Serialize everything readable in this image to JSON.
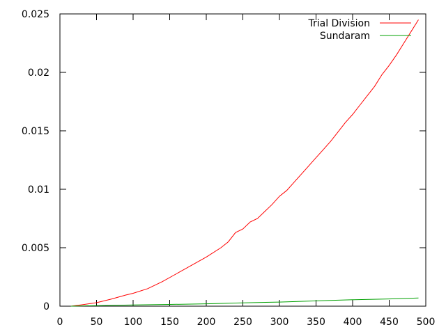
{
  "chart_data": {
    "type": "line",
    "title": "",
    "xlabel": "",
    "ylabel": "",
    "xlim": [
      0,
      500
    ],
    "ylim": [
      0,
      0.025
    ],
    "x_ticks": [
      0,
      50,
      100,
      150,
      200,
      250,
      300,
      350,
      400,
      450,
      500
    ],
    "x_tick_labels": [
      "0",
      "50",
      "100",
      "150",
      "200",
      "250",
      "300",
      "350",
      "400",
      "450",
      "500"
    ],
    "y_ticks": [
      0,
      0.005,
      0.01,
      0.015,
      0.02,
      0.025
    ],
    "y_tick_labels": [
      "0",
      "0.005",
      "0.01",
      "0.015",
      "0.02",
      "0.025"
    ],
    "grid": false,
    "legend_position": "top-right",
    "series": [
      {
        "name": "Trial Division",
        "color": "#ff0000",
        "x": [
          15,
          30,
          50,
          70,
          90,
          100,
          120,
          140,
          160,
          180,
          200,
          220,
          230,
          240,
          250,
          260,
          270,
          280,
          290,
          300,
          310,
          320,
          330,
          340,
          350,
          360,
          370,
          380,
          390,
          400,
          410,
          420,
          430,
          440,
          450,
          460,
          470,
          480,
          490
        ],
        "y": [
          0.0,
          0.00012,
          0.0003,
          0.0006,
          0.00095,
          0.0011,
          0.0015,
          0.0021,
          0.0028,
          0.0035,
          0.0042,
          0.005,
          0.0055,
          0.0063,
          0.0066,
          0.0072,
          0.0075,
          0.0081,
          0.0087,
          0.0094,
          0.0099,
          0.0106,
          0.0113,
          0.012,
          0.0127,
          0.0134,
          0.0141,
          0.0149,
          0.0157,
          0.0164,
          0.0172,
          0.018,
          0.0188,
          0.0198,
          0.0206,
          0.0215,
          0.0225,
          0.0235,
          0.0245
        ]
      },
      {
        "name": "Sundaram",
        "color": "#00a000",
        "x": [
          15,
          50,
          100,
          150,
          200,
          250,
          300,
          350,
          400,
          450,
          490
        ],
        "y": [
          0.0,
          5e-05,
          0.0001,
          0.00015,
          0.0002,
          0.00028,
          0.00035,
          0.00045,
          0.00055,
          0.00062,
          0.0007
        ]
      }
    ]
  }
}
